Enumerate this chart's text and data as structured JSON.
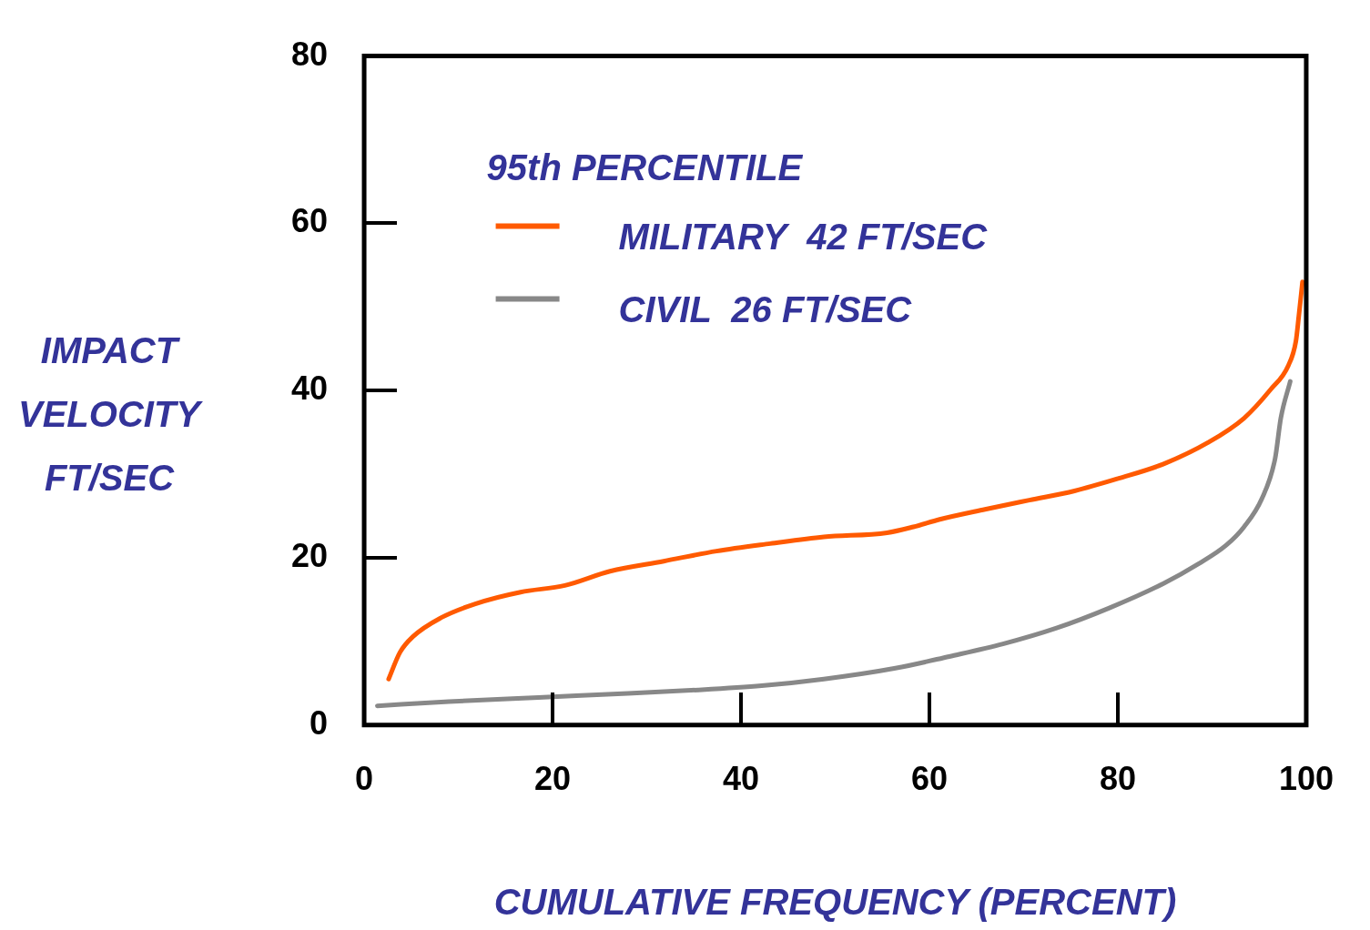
{
  "chart_data": {
    "type": "line",
    "xlabel": "CUMULATIVE FREQUENCY (PERCENT)",
    "ylabel": "IMPACT VELOCITY FT/SEC",
    "legend_title": "95th PERCENTILE",
    "legend": "top left",
    "grid": false,
    "marker": "none",
    "line_style": "solid",
    "xlim": [
      0,
      100
    ],
    "xticks": [
      0,
      20,
      40,
      60,
      80,
      100
    ],
    "ylim": [
      0,
      80
    ],
    "yticks": [
      0,
      20,
      40,
      60,
      80
    ],
    "series": [
      {
        "name": "MILITARY  42 FT/SEC",
        "color": "#ff5a00",
        "x": [
          2.6,
          3.8,
          5.2,
          8.1,
          11.8,
          16.6,
          21.3,
          26.1,
          31.8,
          37.4,
          43.1,
          48.8,
          55.5,
          58.3,
          61.1,
          65.9,
          70.6,
          75.4,
          80.1,
          84.8,
          89.6,
          93.4,
          96.2,
          98.1,
          98.9,
          99.2,
          99.6
        ],
        "values": [
          5.5,
          8.7,
          10.6,
          12.8,
          14.5,
          15.9,
          16.7,
          18.4,
          19.6,
          20.8,
          21.7,
          22.5,
          23.0,
          23.7,
          24.6,
          25.8,
          26.9,
          28.0,
          29.5,
          31.2,
          33.8,
          36.7,
          40.1,
          43.0,
          45.9,
          48.8,
          53.0
        ]
      },
      {
        "name": "CIVIL  26 FT/SEC",
        "color": "#888888",
        "x": [
          1.4,
          9.0,
          18.5,
          28.0,
          35.5,
          42.2,
          48.8,
          56.4,
          62.1,
          67.8,
          73.5,
          79.1,
          84.8,
          88.6,
          91.5,
          93.4,
          95.3,
          96.7,
          97.3,
          98.3
        ],
        "values": [
          2.3,
          2.8,
          3.3,
          3.8,
          4.2,
          4.7,
          5.5,
          6.8,
          8.2,
          9.7,
          11.6,
          14.0,
          16.9,
          19.3,
          21.5,
          23.7,
          27.1,
          31.9,
          36.7,
          41.1
        ]
      }
    ]
  }
}
